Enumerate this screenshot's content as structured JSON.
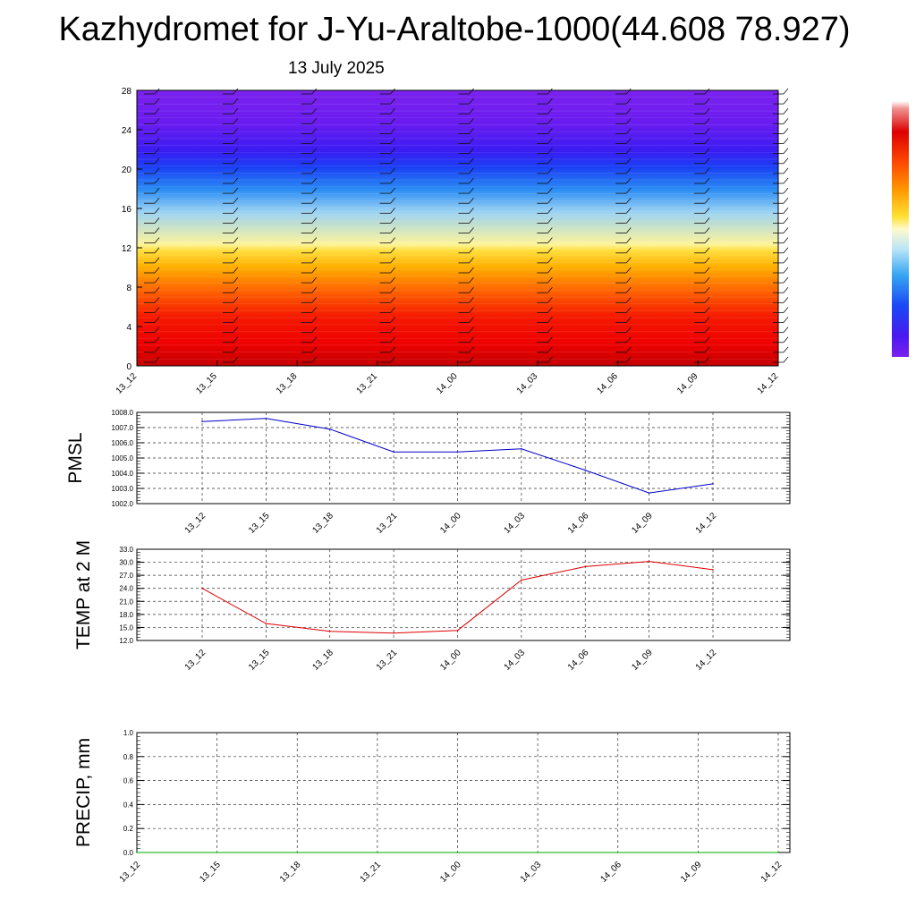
{
  "title": "Kazhydromet for J-Yu-Araltobe-1000(44.608 78.927)",
  "date": "13 July 2025",
  "chart_data": [
    {
      "type": "heatmap",
      "name": "time-height cross section",
      "yticks": [
        "0",
        "4",
        "8",
        "12",
        "16",
        "20",
        "24",
        "28"
      ],
      "ylim": [
        0,
        28
      ],
      "xticks": [
        "13_12",
        "13_15",
        "13_18",
        "13_21",
        "14_00",
        "14_03",
        "14_06",
        "14_09",
        "14_12"
      ],
      "colorbar": true,
      "wind_barbs": true
    },
    {
      "type": "line",
      "ylabel": "PMSL",
      "x": [
        "13_12",
        "13_15",
        "13_18",
        "13_21",
        "14_00",
        "14_03",
        "14_06",
        "14_09",
        "14_12"
      ],
      "values": [
        1007.4,
        1007.6,
        1006.9,
        1005.4,
        1005.4,
        1005.6,
        1004.2,
        1002.7,
        1003.3
      ],
      "ylim": [
        1002.0,
        1008.0
      ],
      "yticks": [
        "1008.0",
        "1007.0",
        "1006.0",
        "1005.0",
        "1004.0",
        "1003.0",
        "1002.0"
      ],
      "color": "#0000cc",
      "grid": true
    },
    {
      "type": "line",
      "ylabel": "TEMP at 2 M",
      "x": [
        "13_12",
        "13_15",
        "13_18",
        "13_21",
        "14_00",
        "14_03",
        "14_06",
        "14_09",
        "14_12"
      ],
      "values": [
        24.0,
        15.9,
        14.1,
        13.7,
        14.3,
        25.9,
        29.0,
        30.2,
        28.3
      ],
      "ylim": [
        12.0,
        33.0
      ],
      "yticks": [
        "33.0",
        "30.0",
        "27.0",
        "24.0",
        "21.0",
        "18.0",
        "15.0",
        "12.0"
      ],
      "color": "#dd0000",
      "grid": true
    },
    {
      "type": "line",
      "ylabel": "PRECIP, mm",
      "x": [
        "13_12",
        "13_15",
        "13_18",
        "13_21",
        "14_00",
        "14_03",
        "14_06",
        "14_09",
        "14_12"
      ],
      "values": [
        0,
        0,
        0,
        0,
        0,
        0,
        0,
        0,
        0
      ],
      "ylim": [
        0.0,
        1.0
      ],
      "yticks": [
        "1.0",
        "0.8",
        "0.6",
        "0.4",
        "0.2",
        "0.0"
      ],
      "color": "#00aa00",
      "grid": true
    }
  ]
}
